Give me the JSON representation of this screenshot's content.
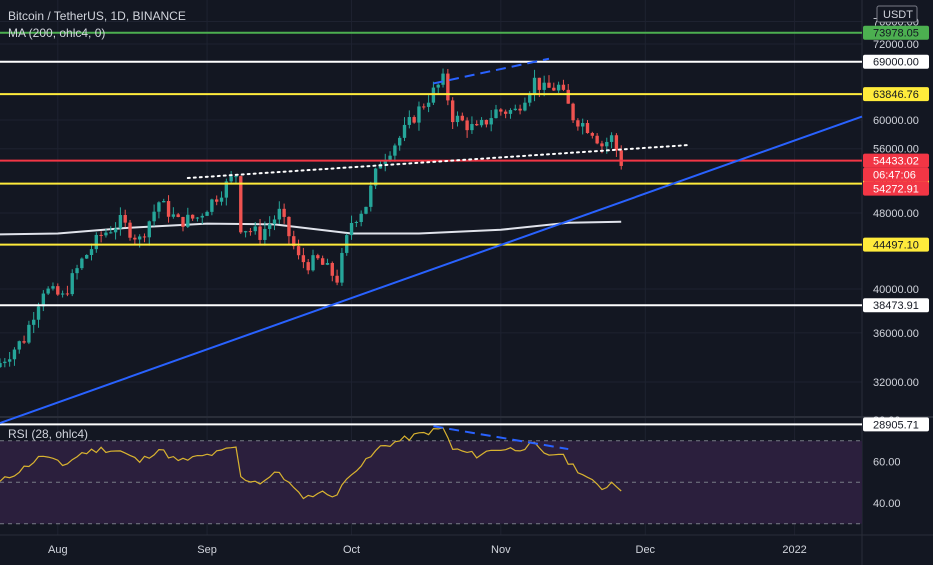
{
  "header": {
    "symbol": "Bitcoin / TetherUS, 1D, BINANCE",
    "indicator": "MA (200, ohlc4, 0)",
    "rsi_label": "RSI (28, ohlc4)",
    "currency": "USDT"
  },
  "colors": {
    "background": "#131722",
    "up": "#26a69a",
    "down": "#ef5350",
    "blue_trend": "#2962ff",
    "white_level": "#ffffff",
    "yellow_level": "#ffeb3b",
    "red_level": "#f23645",
    "green_level": "#4caf50",
    "rsi_line": "#d9b330",
    "rsi_band": "#2b1f3d"
  },
  "chart_data": [
    {
      "type": "candlestick",
      "title": "Bitcoin / TetherUS, 1D, BINANCE",
      "y_axis": {
        "scale": "log",
        "ticks": [
          76000,
          72000,
          64000,
          60000,
          56000,
          48000,
          40000,
          36000,
          32000
        ],
        "tick_labels": [
          "76000.00",
          "72000.00",
          "64000.00",
          "60000.00",
          "56000.00",
          "48000.00",
          "40000.00",
          "36000.00",
          "32000.00"
        ]
      },
      "x_axis": {
        "ticks": [
          "Aug",
          "Sep",
          "Oct",
          "Nov",
          "Dec",
          "2022"
        ],
        "range": [
          "2021-07-20",
          "2022-01-15"
        ]
      },
      "close_path": [
        [
          "2021-07-20",
          33500
        ],
        [
          "2021-07-25",
          35500
        ],
        [
          "2021-07-29",
          40000
        ],
        [
          "2021-08-02",
          39200
        ],
        [
          "2021-08-06",
          42800
        ],
        [
          "2021-08-10",
          45500
        ],
        [
          "2021-08-14",
          47000
        ],
        [
          "2021-08-18",
          45000
        ],
        [
          "2021-08-22",
          49300
        ],
        [
          "2021-08-26",
          47000
        ],
        [
          "2021-08-30",
          47500
        ],
        [
          "2021-09-03",
          50000
        ],
        [
          "2021-09-07",
          52700
        ],
        [
          "2021-09-08",
          46500
        ],
        [
          "2021-09-12",
          45600
        ],
        [
          "2021-09-16",
          48000
        ],
        [
          "2021-09-20",
          43000
        ],
        [
          "2021-09-22",
          42500
        ],
        [
          "2021-09-24",
          42800
        ],
        [
          "2021-09-28",
          41000
        ],
        [
          "2021-10-01",
          47000
        ],
        [
          "2021-10-04",
          49000
        ],
        [
          "2021-10-07",
          54500
        ],
        [
          "2021-10-11",
          57500
        ],
        [
          "2021-10-15",
          61500
        ],
        [
          "2021-10-20",
          66000
        ],
        [
          "2021-10-22",
          60500
        ],
        [
          "2021-10-27",
          58500
        ],
        [
          "2021-10-31",
          61300
        ],
        [
          "2021-11-04",
          61300
        ],
        [
          "2021-11-08",
          66000
        ],
        [
          "2021-11-10",
          64500
        ],
        [
          "2021-11-13",
          65000
        ],
        [
          "2021-11-16",
          60500
        ],
        [
          "2021-11-20",
          58500
        ],
        [
          "2021-11-22",
          56500
        ],
        [
          "2021-11-24",
          57500
        ],
        [
          "2021-11-26",
          54200
        ]
      ],
      "candle_span": [
        "2021-07-20",
        "2021-11-26"
      ],
      "levels": [
        {
          "price": 73978.05,
          "label": "73978.05",
          "color": "green_level"
        },
        {
          "price": 69000.0,
          "label": "69000.00",
          "color": "white_level"
        },
        {
          "price": 63846.76,
          "label": "63846.76",
          "color": "yellow_level"
        },
        {
          "price": 54433.02,
          "label": "54433.02",
          "color": "red_level"
        },
        {
          "price": 51507.05,
          "label": "51507.05",
          "color": "yellow_level"
        },
        {
          "price": 44497.1,
          "label": "44497.10",
          "color": "yellow_level"
        },
        {
          "price": 38473.91,
          "label": "38473.91",
          "color": "white_level"
        },
        {
          "price": 28905.71,
          "label": "28905.71",
          "color": "white_level"
        }
      ],
      "current_price": {
        "label": "54272.91",
        "countdown": "06:47:06"
      },
      "moving_average_200": [
        [
          "2021-07-20",
          45600
        ],
        [
          "2021-08-01",
          45700
        ],
        [
          "2021-08-15",
          46300
        ],
        [
          "2021-09-01",
          46800
        ],
        [
          "2021-09-15",
          46700
        ],
        [
          "2021-10-01",
          45700
        ],
        [
          "2021-10-15",
          45700
        ],
        [
          "2021-11-01",
          46100
        ],
        [
          "2021-11-15",
          46900
        ],
        [
          "2021-11-26",
          47000
        ]
      ],
      "trendlines": [
        {
          "style": "solid",
          "color": "blue_trend",
          "points": [
            [
              "2021-07-20",
              29000
            ],
            [
              "2022-01-15",
              60500
            ]
          ]
        },
        {
          "style": "dotted",
          "color": "white_level",
          "points": [
            [
              "2021-08-28",
              52200
            ],
            [
              "2021-12-10",
              56500
            ]
          ]
        },
        {
          "style": "dashed",
          "color": "blue_trend",
          "points": [
            [
              "2021-10-18",
              65500
            ],
            [
              "2021-11-11",
              69500
            ]
          ]
        }
      ]
    },
    {
      "type": "line",
      "title": "RSI (28, ohlc4)",
      "y_axis": {
        "ticks": [
          80,
          60,
          40
        ],
        "tick_labels": [
          "80.00",
          "60.00",
          "40.00"
        ],
        "band": [
          30,
          70
        ]
      },
      "series": [
        {
          "values": [
            [
              "2021-07-20",
              50
            ],
            [
              "2021-07-25",
              57
            ],
            [
              "2021-07-29",
              63
            ],
            [
              "2021-08-02",
              58
            ],
            [
              "2021-08-06",
              64
            ],
            [
              "2021-08-10",
              66
            ],
            [
              "2021-08-14",
              65
            ],
            [
              "2021-08-18",
              60
            ],
            [
              "2021-08-22",
              66
            ],
            [
              "2021-08-26",
              60
            ],
            [
              "2021-08-30",
              62
            ],
            [
              "2021-09-03",
              64
            ],
            [
              "2021-09-07",
              67
            ],
            [
              "2021-09-08",
              52
            ],
            [
              "2021-09-12",
              50
            ],
            [
              "2021-09-16",
              55
            ],
            [
              "2021-09-20",
              44
            ],
            [
              "2021-09-22",
              43
            ],
            [
              "2021-09-24",
              45
            ],
            [
              "2021-09-28",
              44
            ],
            [
              "2021-10-01",
              55
            ],
            [
              "2021-10-04",
              60
            ],
            [
              "2021-10-07",
              67
            ],
            [
              "2021-10-11",
              70
            ],
            [
              "2021-10-15",
              73
            ],
            [
              "2021-10-20",
              76
            ],
            [
              "2021-10-22",
              66
            ],
            [
              "2021-10-27",
              63
            ],
            [
              "2021-10-31",
              66
            ],
            [
              "2021-11-04",
              66
            ],
            [
              "2021-11-08",
              68
            ],
            [
              "2021-11-10",
              63
            ],
            [
              "2021-11-13",
              64
            ],
            [
              "2021-11-16",
              58
            ],
            [
              "2021-11-20",
              50
            ],
            [
              "2021-11-22",
              47
            ],
            [
              "2021-11-24",
              50
            ],
            [
              "2021-11-26",
              47
            ]
          ]
        }
      ],
      "trendlines": [
        {
          "style": "dashed",
          "color": "blue_trend",
          "points": [
            [
              "2021-10-18",
              77
            ],
            [
              "2021-11-15",
              66
            ]
          ]
        }
      ]
    }
  ]
}
